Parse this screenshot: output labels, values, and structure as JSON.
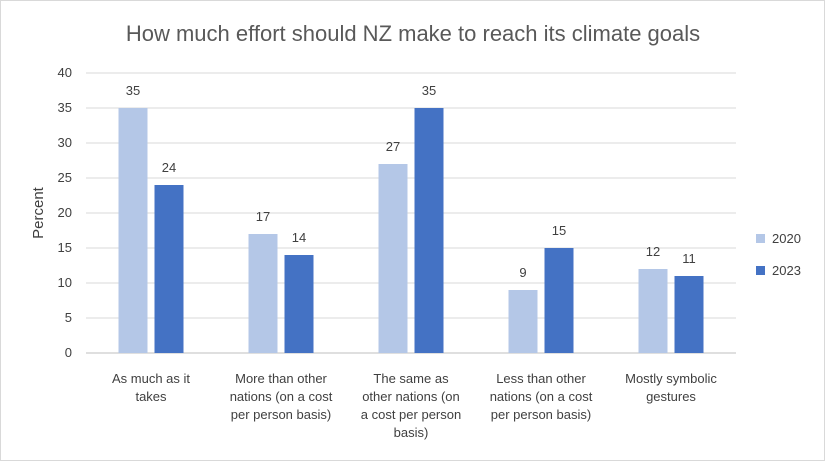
{
  "chart_data": {
    "type": "bar",
    "title": "How much effort should NZ make to reach its climate goals",
    "ylabel": "Percent",
    "xlabel": "",
    "ylim": [
      0,
      40
    ],
    "yticks": [
      0,
      5,
      10,
      15,
      20,
      25,
      30,
      35,
      40
    ],
    "grid": true,
    "legend_position": "right",
    "categories": [
      [
        "As much as it",
        "takes"
      ],
      [
        "More than other",
        "nations (on a cost",
        "per person basis)"
      ],
      [
        "The same as",
        "other nations (on",
        "a cost per person",
        "basis)"
      ],
      [
        "Less than other",
        "nations (on a cost",
        "per person basis)"
      ],
      [
        "Mostly symbolic",
        "gestures"
      ]
    ],
    "series": [
      {
        "name": "2020",
        "color": "#b4c7e7",
        "values": [
          35,
          17,
          27,
          9,
          12
        ]
      },
      {
        "name": "2023",
        "color": "#4472c4",
        "values": [
          24,
          14,
          35,
          15,
          11
        ]
      }
    ]
  }
}
